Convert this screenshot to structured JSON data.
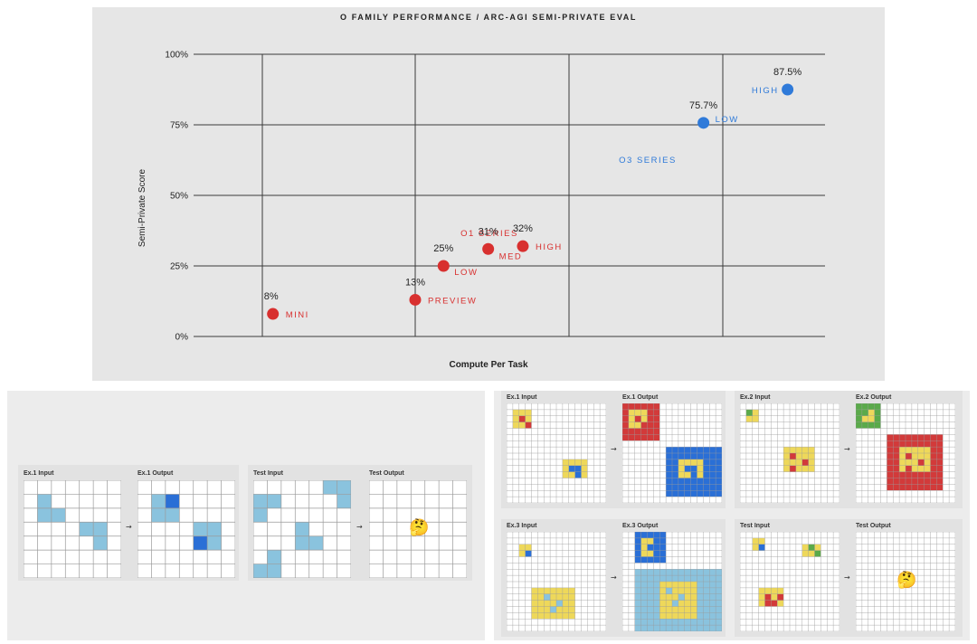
{
  "chart_data": {
    "type": "scatter",
    "title": "O FAMILY PERFORMANCE / ARC-AGI SEMI-PRIVATE EVAL",
    "xlabel": "Compute Per Task",
    "ylabel": "Semi-Private Score",
    "ylim": [
      0,
      100
    ],
    "yticks": [
      {
        "value": 0,
        "label": "0%"
      },
      {
        "value": 25,
        "label": "25%"
      },
      {
        "value": 50,
        "label": "50%"
      },
      {
        "value": 75,
        "label": "75%"
      },
      {
        "value": 100,
        "label": "100%"
      }
    ],
    "x_scale": "log (unlabeled)",
    "series": [
      {
        "name": "O1 SERIES",
        "color": "#d8302f",
        "points": [
          {
            "label": "MINI",
            "value": 8,
            "value_label": "8%",
            "compute": 0.2
          },
          {
            "label": "PREVIEW",
            "value": 13,
            "value_label": "13%",
            "compute": 0.5
          },
          {
            "label": "LOW",
            "value": 25,
            "value_label": "25%",
            "compute": 0.6
          },
          {
            "label": "MED",
            "value": 31,
            "value_label": "31%",
            "compute": 0.8
          },
          {
            "label": "HIGH",
            "value": 32,
            "value_label": "32%",
            "compute": 1.0
          }
        ]
      },
      {
        "name": "O3 SERIES",
        "color": "#2f7ad9",
        "points": [
          {
            "label": "LOW",
            "value": 75.7,
            "value_label": "75.7%",
            "compute": 3.2
          },
          {
            "label": "HIGH",
            "value": 87.5,
            "value_label": "87.5%",
            "compute": 5.5
          }
        ]
      }
    ],
    "series_labels": [
      "O1 SERIES",
      "O3 SERIES"
    ],
    "grid": true
  },
  "left_puzzle": {
    "cards": [
      {
        "left_label": "Ex.1 Input",
        "right_label": "Ex.1 Output",
        "arrow": "→"
      },
      {
        "left_label": "Test Input",
        "right_label": "Test Output",
        "arrow": "→",
        "emoji": "🤔"
      }
    ]
  },
  "right_puzzle": {
    "cards": [
      {
        "left_label": "Ex.1 Input",
        "right_label": "Ex.1 Output",
        "arrow": "→"
      },
      {
        "left_label": "Ex.2 Input",
        "right_label": "Ex.2 Output",
        "arrow": "→"
      },
      {
        "left_label": "Ex.3 Input",
        "right_label": "Ex.3 Output",
        "arrow": "→"
      },
      {
        "left_label": "Test Input",
        "right_label": "Test Output",
        "arrow": "→",
        "emoji": "🤔"
      }
    ]
  },
  "colors": {
    "o1": "#d8302f",
    "o3": "#2f7ad9",
    "light_blue": "#8ac3de",
    "dark_blue": "#2a6fd6",
    "yellow": "#eed85a",
    "red": "#d23a3a",
    "green": "#5aaa4a",
    "grid_line": "#bdbdbd"
  }
}
